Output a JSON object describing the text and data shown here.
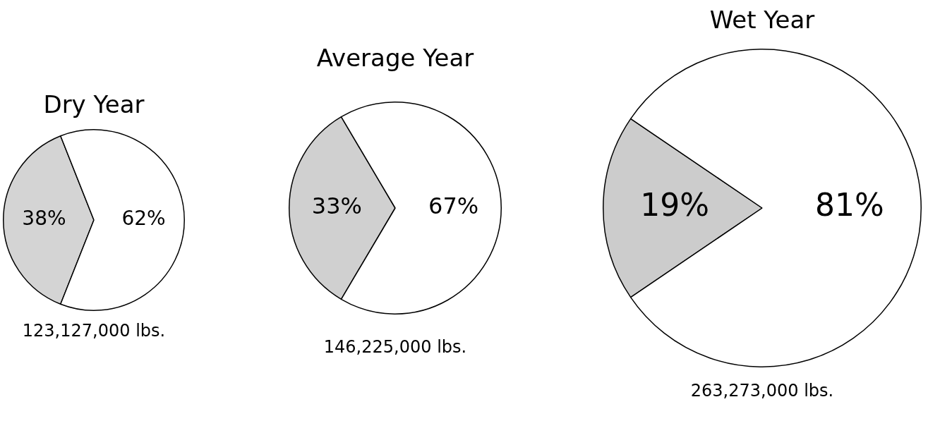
{
  "chart_data": [
    {
      "type": "pie",
      "title": "Dry Year",
      "categories": [
        null,
        null
      ],
      "values": [
        38,
        62
      ],
      "colors": [
        "#d4d4d4",
        "#ffffff"
      ],
      "value_labels": [
        "38%",
        "62%"
      ],
      "annotations": [
        "123,127,000 lbs."
      ]
    },
    {
      "type": "pie",
      "title": "Average Year",
      "categories": [
        null,
        null
      ],
      "values": [
        33,
        67
      ],
      "colors": [
        "#d0d0d0",
        "#ffffff"
      ],
      "value_labels": [
        "33%",
        "67%"
      ],
      "annotations": [
        "146,225,000 lbs."
      ]
    },
    {
      "type": "pie",
      "title": "Wet Year",
      "categories": [
        null,
        null
      ],
      "values": [
        19,
        81
      ],
      "colors": [
        "#cccccc",
        "#ffffff"
      ],
      "value_labels": [
        "19%",
        "81%"
      ],
      "annotations": [
        "263,273,000 lbs."
      ]
    }
  ]
}
